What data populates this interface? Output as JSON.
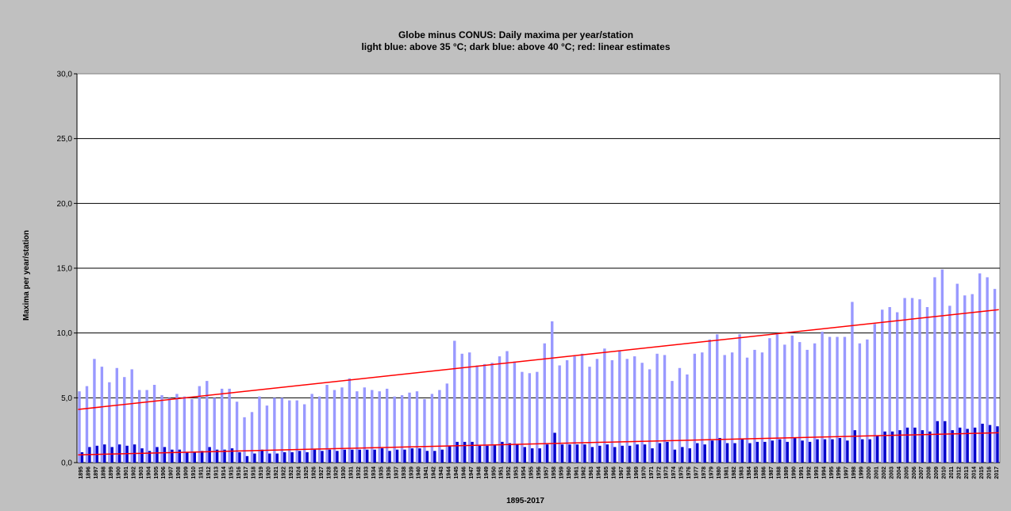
{
  "chart_data": {
    "type": "bar",
    "title": "Globe minus CONUS: Daily maxima per year/station",
    "subtitle": "light blue: above 35 °C; dark blue: above 40 °C; red: linear estimates",
    "xlabel": "1895-2017",
    "ylabel": "Maxima per year/station",
    "ylim": [
      0,
      30
    ],
    "yticks": [
      "0,0",
      "5,0",
      "10,0",
      "15,0",
      "20,0",
      "25,0",
      "30,0"
    ],
    "grid": true,
    "colors": {
      "above35": "#9999ff",
      "above40": "#0000cc",
      "trend": "#ff0000",
      "plot_bg": "#ffffff",
      "figure_bg": "#c0c0c0"
    },
    "categories": [
      "1895",
      "1896",
      "1897",
      "1898",
      "1899",
      "1900",
      "1901",
      "1902",
      "1903",
      "1904",
      "1905",
      "1906",
      "1907",
      "1908",
      "1909",
      "1910",
      "1911",
      "1912",
      "1913",
      "1914",
      "1915",
      "1916",
      "1917",
      "1918",
      "1919",
      "1920",
      "1921",
      "1922",
      "1923",
      "1924",
      "1925",
      "1926",
      "1927",
      "1928",
      "1929",
      "1930",
      "1931",
      "1932",
      "1933",
      "1934",
      "1935",
      "1936",
      "1937",
      "1938",
      "1939",
      "1940",
      "1941",
      "1942",
      "1943",
      "1944",
      "1945",
      "1946",
      "1947",
      "1948",
      "1949",
      "1950",
      "1951",
      "1952",
      "1953",
      "1954",
      "1955",
      "1956",
      "1957",
      "1958",
      "1959",
      "1960",
      "1961",
      "1962",
      "1963",
      "1964",
      "1965",
      "1966",
      "1967",
      "1968",
      "1969",
      "1970",
      "1971",
      "1972",
      "1973",
      "1974",
      "1975",
      "1976",
      "1977",
      "1978",
      "1979",
      "1980",
      "1981",
      "1982",
      "1983",
      "1984",
      "1985",
      "1986",
      "1987",
      "1988",
      "1989",
      "1990",
      "1991",
      "1992",
      "1993",
      "1994",
      "1995",
      "1996",
      "1997",
      "1998",
      "1999",
      "2000",
      "2001",
      "2002",
      "2003",
      "2004",
      "2005",
      "2006",
      "2007",
      "2008",
      "2009",
      "2010",
      "2011",
      "2012",
      "2013",
      "2014",
      "2015",
      "2016",
      "2017"
    ],
    "series": [
      {
        "name": "above 35 °C",
        "values": [
          5.5,
          5.9,
          8.0,
          7.4,
          6.2,
          7.3,
          6.6,
          7.2,
          5.6,
          5.6,
          6.0,
          5.2,
          5.0,
          5.3,
          5.1,
          4.9,
          5.9,
          6.3,
          5.0,
          5.7,
          5.7,
          4.7,
          3.5,
          3.9,
          5.1,
          4.4,
          5.0,
          5.0,
          4.8,
          4.8,
          4.5,
          5.3,
          5.1,
          6.0,
          5.6,
          5.8,
          6.5,
          5.5,
          5.8,
          5.6,
          5.5,
          5.7,
          5.1,
          5.2,
          5.4,
          5.5,
          4.9,
          5.3,
          5.6,
          6.1,
          9.4,
          8.4,
          8.5,
          7.5,
          7.6,
          7.7,
          8.2,
          8.6,
          7.8,
          7.0,
          6.9,
          7.0,
          9.2,
          10.9,
          7.5,
          7.9,
          8.2,
          8.4,
          7.4,
          8.0,
          8.8,
          7.9,
          8.6,
          8.0,
          8.2,
          7.7,
          7.2,
          8.4,
          8.3,
          6.3,
          7.3,
          6.8,
          8.4,
          8.5,
          9.5,
          9.9,
          8.3,
          8.5,
          9.9,
          8.1,
          8.7,
          8.5,
          9.6,
          9.9,
          9.1,
          9.8,
          9.3,
          8.7,
          9.2,
          10.1,
          9.7,
          9.7,
          9.7,
          12.4,
          9.2,
          9.5,
          10.7,
          11.8,
          12.0,
          11.6,
          12.7,
          12.7,
          12.6,
          12.0,
          14.3,
          14.9,
          12.1,
          13.8,
          12.9,
          13.0,
          14.6,
          14.3,
          13.4
        ]
      },
      {
        "name": "above 40 °C",
        "values": [
          0.8,
          1.2,
          1.3,
          1.4,
          1.2,
          1.4,
          1.3,
          1.4,
          1.1,
          0.9,
          1.2,
          1.2,
          1.0,
          1.0,
          0.8,
          0.8,
          0.9,
          1.2,
          1.0,
          1.0,
          1.1,
          0.8,
          0.5,
          0.7,
          1.0,
          0.7,
          0.7,
          0.8,
          0.8,
          0.9,
          0.8,
          1.0,
          0.9,
          1.0,
          0.9,
          1.0,
          1.0,
          1.0,
          1.0,
          1.0,
          1.1,
          0.9,
          1.0,
          1.0,
          1.1,
          1.1,
          0.9,
          0.9,
          1.0,
          1.3,
          1.6,
          1.6,
          1.6,
          1.3,
          1.3,
          1.4,
          1.6,
          1.5,
          1.4,
          1.2,
          1.1,
          1.1,
          1.4,
          2.3,
          1.4,
          1.4,
          1.4,
          1.4,
          1.2,
          1.3,
          1.4,
          1.2,
          1.3,
          1.3,
          1.4,
          1.4,
          1.1,
          1.5,
          1.6,
          1.0,
          1.2,
          1.1,
          1.5,
          1.4,
          1.7,
          1.9,
          1.5,
          1.5,
          1.8,
          1.5,
          1.6,
          1.6,
          1.7,
          1.8,
          1.6,
          1.9,
          1.7,
          1.6,
          1.8,
          1.8,
          1.8,
          1.9,
          1.7,
          2.5,
          1.8,
          1.8,
          2.1,
          2.4,
          2.4,
          2.5,
          2.7,
          2.7,
          2.5,
          2.4,
          3.2,
          3.2,
          2.5,
          2.7,
          2.6,
          2.7,
          3.0,
          2.9,
          2.8
        ]
      }
    ],
    "trend_lines": [
      {
        "name": "linear estimate above 35 °C",
        "x": [
          "1895",
          "2017"
        ],
        "y": [
          4.1,
          11.8
        ]
      },
      {
        "name": "linear estimate above 40 °C",
        "x": [
          "1895",
          "2017"
        ],
        "y": [
          0.6,
          2.3
        ]
      }
    ]
  }
}
